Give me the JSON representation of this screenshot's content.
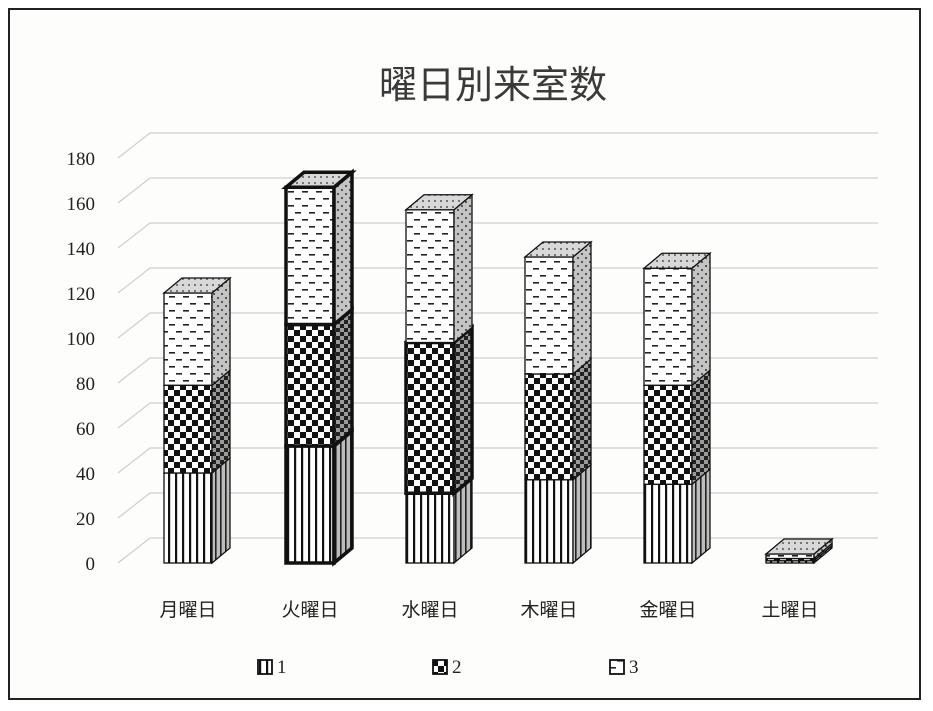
{
  "chart_data": {
    "type": "bar",
    "stacked": true,
    "three_d": true,
    "title": "曜日別来室数",
    "categories": [
      "月曜日",
      "火曜日",
      "水曜日",
      "木曜日",
      "金曜日",
      "土曜日"
    ],
    "series": [
      {
        "name": "1",
        "values": [
          40,
          52,
          31,
          37,
          35,
          1
        ]
      },
      {
        "name": "2",
        "values": [
          39,
          54,
          67,
          47,
          44,
          1
        ]
      },
      {
        "name": "3",
        "values": [
          41,
          61,
          59,
          52,
          52,
          2
        ]
      }
    ],
    "ylim": [
      0,
      180
    ],
    "yticks": [
      0,
      20,
      40,
      60,
      80,
      100,
      120,
      140,
      160,
      180
    ],
    "grid": true,
    "legend": "bottom"
  }
}
